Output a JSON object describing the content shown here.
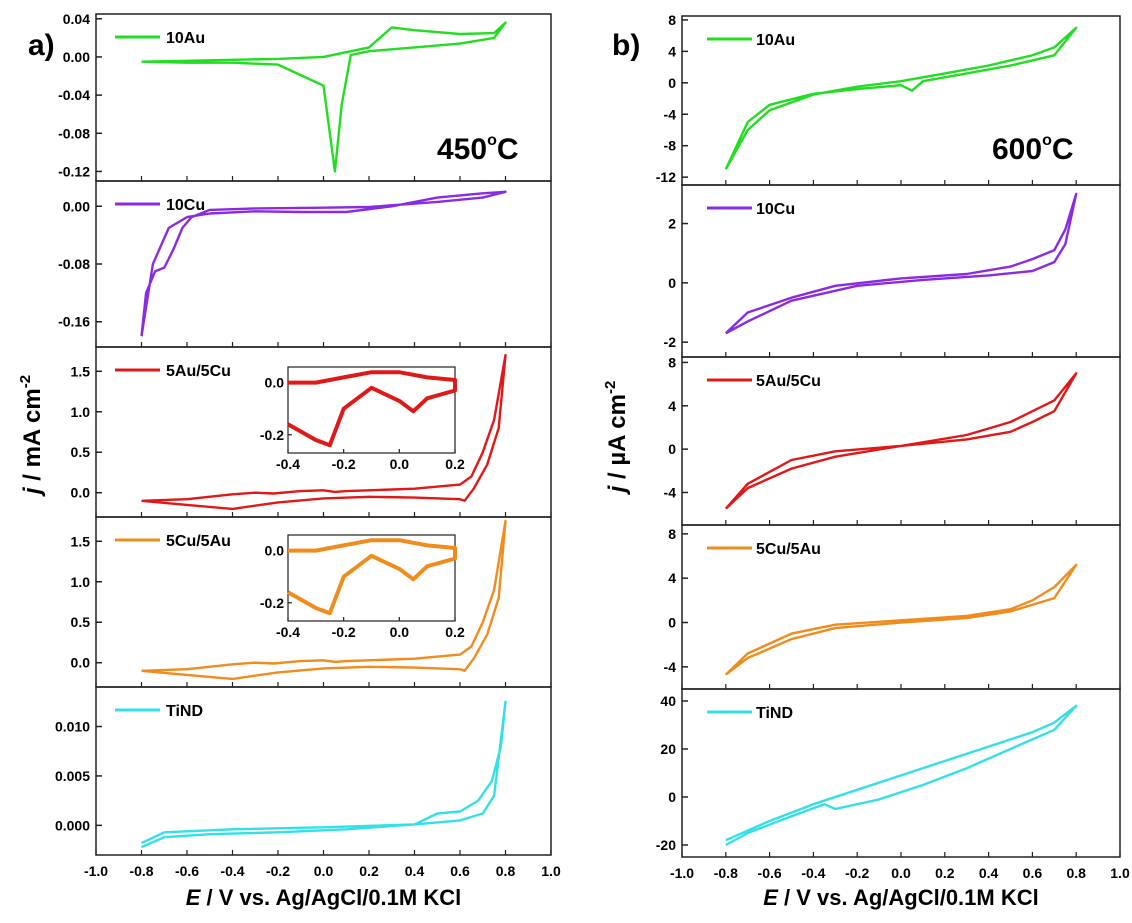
{
  "chart_data": [
    {
      "panel": "a)",
      "temperature": "450°C",
      "type": "line",
      "xlabel_var": "E",
      "xlabel_rest": " / V vs. Ag/AgCl/0.1M KCl",
      "ylabel_var": "j",
      "ylabel_rest": " / mA cm",
      "ylabel_sup": "-2",
      "xlim": [
        -1.0,
        1.0
      ],
      "xticks": [
        "-1.0",
        "-0.8",
        "-0.6",
        "-0.4",
        "-0.2",
        "0.0",
        "0.2",
        "0.4",
        "0.6",
        "0.8",
        "1.0"
      ],
      "subplots": [
        {
          "name": "10Au",
          "color": "#22dd22",
          "ylim": [
            -0.13,
            0.045
          ],
          "yticks": [
            0.04,
            0.0,
            -0.04,
            -0.08,
            -0.12
          ],
          "yticklabels": [
            "0.04",
            "0.00",
            "-0.04",
            "-0.08",
            "-0.12"
          ],
          "x": [
            -0.8,
            -0.6,
            -0.4,
            -0.2,
            0.0,
            0.2,
            0.3,
            0.4,
            0.6,
            0.75,
            0.8,
            0.75,
            0.6,
            0.4,
            0.3,
            0.2,
            0.12,
            0.08,
            0.05,
            0.0,
            -0.2,
            -0.4,
            -0.6,
            -0.8
          ],
          "y": [
            -0.005,
            -0.004,
            -0.003,
            -0.002,
            0.0,
            0.01,
            0.031,
            0.028,
            0.024,
            0.025,
            0.036,
            0.02,
            0.014,
            0.01,
            0.008,
            0.006,
            0.002,
            -0.05,
            -0.12,
            -0.03,
            -0.008,
            -0.006,
            -0.006,
            -0.005
          ]
        },
        {
          "name": "10Cu",
          "color": "#8a2be2",
          "ylim": [
            -0.195,
            0.035
          ],
          "yticks": [
            0.0,
            -0.08,
            -0.16
          ],
          "yticklabels": [
            "0.00",
            "-0.08",
            "-0.16"
          ],
          "x": [
            -0.8,
            -0.78,
            -0.74,
            -0.7,
            -0.66,
            -0.62,
            -0.58,
            -0.5,
            -0.3,
            0.0,
            0.2,
            0.5,
            0.7,
            0.8,
            0.7,
            0.5,
            0.3,
            0.1,
            -0.1,
            -0.3,
            -0.5,
            -0.6,
            -0.68,
            -0.75,
            -0.8
          ],
          "y": [
            -0.18,
            -0.12,
            -0.09,
            -0.085,
            -0.06,
            -0.03,
            -0.015,
            -0.005,
            -0.003,
            -0.002,
            -0.001,
            0.006,
            0.012,
            0.02,
            0.018,
            0.012,
            0.0,
            -0.008,
            -0.008,
            -0.007,
            -0.01,
            -0.015,
            -0.03,
            -0.08,
            -0.18
          ]
        },
        {
          "name": "5Au/5Cu",
          "color": "#e01818",
          "ylim": [
            -0.3,
            1.8
          ],
          "yticks": [
            0.0,
            0.5,
            1.0,
            1.5
          ],
          "yticklabels": [
            "0.0",
            "0.5",
            "1.0",
            "1.5"
          ],
          "x": [
            -0.8,
            -0.6,
            -0.4,
            -0.3,
            -0.22,
            -0.1,
            0.0,
            0.05,
            0.1,
            0.2,
            0.4,
            0.6,
            0.65,
            0.7,
            0.75,
            0.8,
            0.77,
            0.72,
            0.66,
            0.62,
            0.6,
            0.4,
            0.2,
            0.0,
            -0.2,
            -0.4,
            -0.6,
            -0.8
          ],
          "y": [
            -0.1,
            -0.08,
            -0.02,
            0.0,
            -0.01,
            0.02,
            0.03,
            0.01,
            0.02,
            0.03,
            0.05,
            0.1,
            0.2,
            0.5,
            0.9,
            1.7,
            0.8,
            0.35,
            0.05,
            -0.1,
            -0.08,
            -0.06,
            -0.05,
            -0.07,
            -0.12,
            -0.2,
            -0.15,
            -0.1
          ],
          "inset": {
            "xlim": [
              -0.4,
              0.2
            ],
            "ylim": [
              -0.27,
              0.06
            ],
            "xticklabels": [
              "-0.4",
              "-0.2",
              "0.0",
              "0.2"
            ],
            "yticks": [
              0.0,
              -0.2
            ],
            "yticklabels": [
              "0.0",
              "-0.2"
            ],
            "x": [
              -0.4,
              -0.3,
              -0.2,
              -0.1,
              0.0,
              0.1,
              0.2,
              0.2,
              0.1,
              0.05,
              0.0,
              -0.1,
              -0.2,
              -0.25,
              -0.3,
              -0.4
            ],
            "y": [
              0.0,
              0.0,
              0.02,
              0.04,
              0.04,
              0.02,
              0.01,
              -0.03,
              -0.06,
              -0.11,
              -0.07,
              -0.02,
              -0.1,
              -0.24,
              -0.22,
              -0.16
            ]
          }
        },
        {
          "name": "5Cu/5Au",
          "color": "#f08c1e",
          "ylim": [
            -0.3,
            1.8
          ],
          "yticks": [
            0.0,
            0.5,
            1.0,
            1.5
          ],
          "yticklabels": [
            "0.0",
            "0.5",
            "1.0",
            "1.5"
          ],
          "x": [
            -0.8,
            -0.6,
            -0.4,
            -0.3,
            -0.22,
            -0.1,
            0.0,
            0.05,
            0.1,
            0.2,
            0.4,
            0.6,
            0.65,
            0.7,
            0.75,
            0.8,
            0.77,
            0.72,
            0.66,
            0.62,
            0.6,
            0.4,
            0.2,
            0.0,
            -0.2,
            -0.4,
            -0.6,
            -0.8
          ],
          "y": [
            -0.1,
            -0.08,
            -0.02,
            0.0,
            -0.01,
            0.02,
            0.03,
            0.01,
            0.02,
            0.03,
            0.05,
            0.1,
            0.2,
            0.5,
            0.9,
            1.75,
            0.8,
            0.35,
            0.05,
            -0.1,
            -0.08,
            -0.06,
            -0.05,
            -0.07,
            -0.12,
            -0.2,
            -0.15,
            -0.1
          ],
          "inset": {
            "xlim": [
              -0.4,
              0.2
            ],
            "ylim": [
              -0.27,
              0.06
            ],
            "xticklabels": [
              "-0.4",
              "-0.2",
              "0.0",
              "0.2"
            ],
            "yticks": [
              0.0,
              -0.2
            ],
            "yticklabels": [
              "0.0",
              "-0.2"
            ],
            "x": [
              -0.4,
              -0.3,
              -0.2,
              -0.1,
              0.0,
              0.1,
              0.2,
              0.2,
              0.1,
              0.05,
              0.0,
              -0.1,
              -0.2,
              -0.25,
              -0.3,
              -0.4
            ],
            "y": [
              0.0,
              0.0,
              0.02,
              0.04,
              0.04,
              0.02,
              0.01,
              -0.03,
              -0.06,
              -0.11,
              -0.07,
              -0.02,
              -0.1,
              -0.24,
              -0.22,
              -0.16
            ]
          }
        },
        {
          "name": "TiND",
          "color": "#33e0e8",
          "ylim": [
            -0.003,
            0.014
          ],
          "yticks": [
            0.0,
            0.005,
            0.01
          ],
          "yticklabels": [
            "0.000",
            "0.005",
            "0.010"
          ],
          "x": [
            -0.8,
            -0.7,
            -0.5,
            -0.2,
            0.1,
            0.4,
            0.5,
            0.6,
            0.68,
            0.74,
            0.78,
            0.8,
            0.75,
            0.7,
            0.6,
            0.4,
            0.0,
            -0.4,
            -0.7,
            -0.8
          ],
          "y": [
            -0.0022,
            -0.0012,
            -0.0009,
            -0.0007,
            -0.0004,
            0.0001,
            0.0012,
            0.0014,
            0.0025,
            0.0045,
            0.008,
            0.0125,
            0.003,
            0.0012,
            0.0005,
            0.0001,
            -0.0002,
            -0.0004,
            -0.0007,
            -0.0018
          ]
        }
      ]
    },
    {
      "panel": "b)",
      "temperature": "600°C",
      "type": "line",
      "xlabel_var": "E",
      "xlabel_rest": " / V vs. Ag/AgCl/0.1M KCl",
      "ylabel_var": "j",
      "ylabel_rest": " / µA cm",
      "ylabel_sup": "-2",
      "xlim": [
        -1.0,
        1.0
      ],
      "xticks": [
        "-1.0",
        "-0.8",
        "-0.6",
        "-0.4",
        "-0.2",
        "0.0",
        "0.2",
        "0.4",
        "0.6",
        "0.8",
        "1.0"
      ],
      "subplots": [
        {
          "name": "10Au",
          "color": "#22dd22",
          "ylim": [
            -13,
            8.5
          ],
          "yticks": [
            8,
            4,
            0,
            -4,
            -8,
            -12
          ],
          "yticklabels": [
            "8",
            "4",
            "0",
            "-4",
            "-8",
            "-12"
          ],
          "x": [
            -0.8,
            -0.7,
            -0.6,
            -0.4,
            -0.2,
            0.0,
            0.2,
            0.4,
            0.6,
            0.7,
            0.8,
            0.7,
            0.5,
            0.3,
            0.1,
            0.05,
            0.0,
            -0.2,
            -0.4,
            -0.6,
            -0.7,
            -0.8
          ],
          "y": [
            -11,
            -6,
            -3.5,
            -1.5,
            -0.5,
            0.2,
            1.2,
            2.2,
            3.5,
            4.5,
            7,
            3.5,
            2.2,
            1.2,
            0.2,
            -1.0,
            -0.3,
            -0.8,
            -1.4,
            -2.8,
            -5,
            -11
          ]
        },
        {
          "name": "10Cu",
          "color": "#8a2be2",
          "ylim": [
            -2.5,
            3.3
          ],
          "yticks": [
            2,
            0,
            -2
          ],
          "yticklabels": [
            "2",
            "0",
            "-2"
          ],
          "x": [
            -0.8,
            -0.7,
            -0.5,
            -0.3,
            0.0,
            0.3,
            0.5,
            0.6,
            0.7,
            0.75,
            0.8,
            0.75,
            0.7,
            0.6,
            0.4,
            0.1,
            -0.2,
            -0.5,
            -0.7,
            -0.8
          ],
          "y": [
            -1.7,
            -1.0,
            -0.5,
            -0.1,
            0.15,
            0.3,
            0.55,
            0.8,
            1.1,
            1.8,
            3.0,
            1.3,
            0.7,
            0.4,
            0.25,
            0.1,
            -0.1,
            -0.6,
            -1.3,
            -1.7
          ]
        },
        {
          "name": "5Au/5Cu",
          "color": "#e01818",
          "ylim": [
            -7,
            8.5
          ],
          "yticks": [
            8,
            4,
            0,
            -4
          ],
          "yticklabels": [
            "8",
            "4",
            "0",
            "-4"
          ],
          "x": [
            -0.8,
            -0.7,
            -0.5,
            -0.3,
            0.0,
            0.3,
            0.5,
            0.6,
            0.7,
            0.8,
            0.7,
            0.5,
            0.3,
            0.0,
            -0.3,
            -0.5,
            -0.7,
            -0.8
          ],
          "y": [
            -5.5,
            -3.2,
            -1.0,
            -0.2,
            0.3,
            0.9,
            1.6,
            2.5,
            3.5,
            7,
            4.5,
            2.5,
            1.3,
            0.3,
            -0.7,
            -1.8,
            -3.6,
            -5.5
          ]
        },
        {
          "name": "5Cu/5Au",
          "color": "#f08c1e",
          "ylim": [
            -6,
            8.8
          ],
          "yticks": [
            8,
            4,
            0,
            -4
          ],
          "yticklabels": [
            "8",
            "4",
            "0",
            "-4"
          ],
          "x": [
            -0.8,
            -0.7,
            -0.5,
            -0.3,
            0.0,
            0.3,
            0.5,
            0.6,
            0.7,
            0.8,
            0.7,
            0.5,
            0.3,
            0.0,
            -0.3,
            -0.5,
            -0.7,
            -0.8
          ],
          "y": [
            -4.7,
            -2.8,
            -1.0,
            -0.2,
            0.2,
            0.6,
            1.2,
            2.0,
            3.2,
            5.2,
            2.2,
            1.0,
            0.4,
            0.0,
            -0.5,
            -1.5,
            -3.2,
            -4.7
          ]
        },
        {
          "name": "TiND",
          "color": "#33e0e8",
          "ylim": [
            -25,
            45
          ],
          "yticks": [
            40,
            20,
            0,
            -20
          ],
          "yticklabels": [
            "40",
            "20",
            "0",
            "-20"
          ],
          "x": [
            -0.8,
            -0.6,
            -0.4,
            -0.2,
            0.0,
            0.2,
            0.4,
            0.6,
            0.7,
            0.8,
            0.7,
            0.5,
            0.3,
            0.1,
            -0.1,
            -0.3,
            -0.35,
            -0.5,
            -0.7,
            -0.8
          ],
          "y": [
            -18,
            -10,
            -3,
            3,
            9,
            15,
            21,
            27,
            31,
            38,
            28,
            20,
            12,
            5,
            -1,
            -5,
            -3,
            -8,
            -15,
            -20
          ]
        }
      ]
    }
  ]
}
